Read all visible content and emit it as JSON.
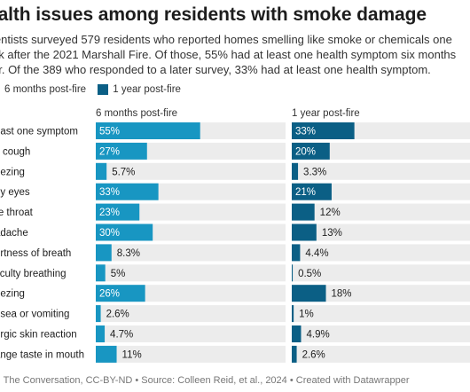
{
  "title": "ealth issues among residents with smoke damage",
  "subtitle": "ientists surveyed 579 residents who reported homes smelling like smoke or chemicals one\nek after the 2021 Marshall Fire. Of those, 55% had at least one health symptom six months\ner. Of the 389 who responded to a later survey, 33% had at least one health symptom.",
  "legend": [
    {
      "label": "6 months post-fire",
      "color": "#1896c2"
    },
    {
      "label": "1 year post-fire",
      "color": "#0b5f85"
    }
  ],
  "footer": "rt: The Conversation, CC-BY-ND • Source: Colleen Reid, et al., 2024 • Created with Datawrapper",
  "chart_data": {
    "type": "bar",
    "orientation": "horizontal",
    "categories": [
      "east one symptom",
      "y cough",
      "eezing",
      "hy eyes",
      "re throat",
      "adache",
      "ortness of breath",
      "ficulty breathing",
      "eezing",
      "usea or vomiting",
      "ergic skin reaction",
      "ange taste in mouth"
    ],
    "series": [
      {
        "name": "6 months post-fire",
        "color": "#1896c2",
        "values": [
          55,
          27,
          5.7,
          33,
          23,
          30,
          8.3,
          5,
          26,
          2.6,
          4.7,
          11
        ],
        "labels": [
          "55%",
          "27%",
          "5.7%",
          "33%",
          "23%",
          "30%",
          "8.3%",
          "5%",
          "26%",
          "2.6%",
          "4.7%",
          "11%"
        ]
      },
      {
        "name": "1 year post-fire",
        "color": "#0b5f85",
        "values": [
          33,
          20,
          3.3,
          21,
          12,
          13,
          4.4,
          0.5,
          18,
          1,
          4.9,
          2.6
        ],
        "labels": [
          "33%",
          "20%",
          "3.3%",
          "21%",
          "12%",
          "13%",
          "4.4%",
          "0.5%",
          "18%",
          "1%",
          "4.9%",
          "2.6%"
        ]
      }
    ],
    "xlim": [
      0,
      100
    ],
    "panel_titles": [
      "6 months post-fire",
      "1 year post-fire"
    ],
    "background_track_color": "#ececec"
  }
}
